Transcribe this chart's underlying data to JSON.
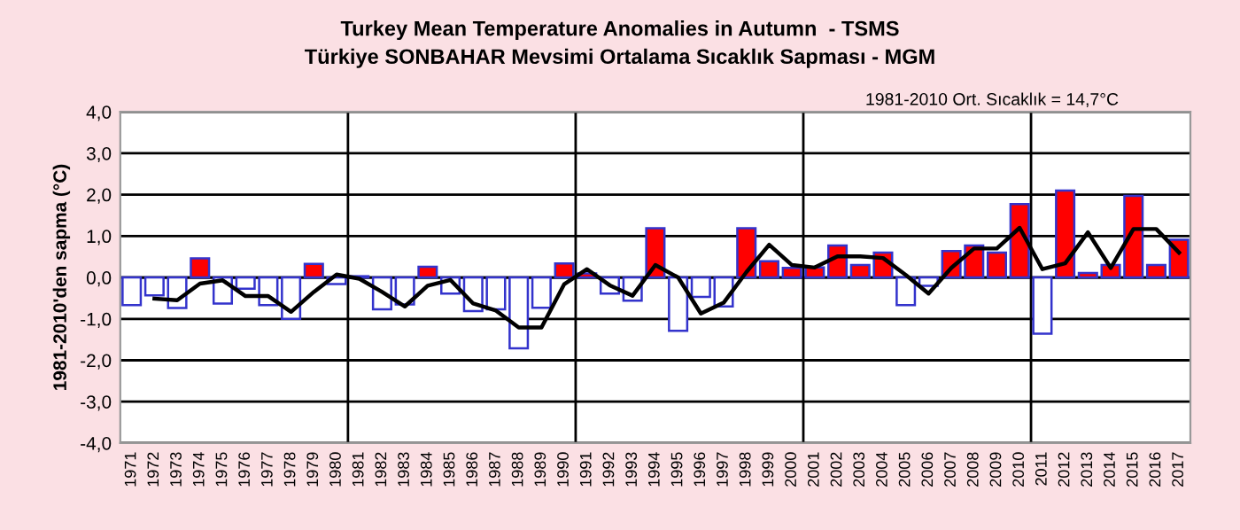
{
  "chart_data": {
    "type": "bar",
    "title": "Turkey Mean Temperature Anomalies in Autumn  - TSMS",
    "subtitle": "Türkiye SONBAHAR Mevsimi Ortalama Sıcaklık Sapması - MGM",
    "ylabel": "1981-2010'den sapma (°C)",
    "annotations": [
      "1981-2010 Ort. Sıcaklık = 14,7°C"
    ],
    "x": [
      1971,
      1972,
      1973,
      1974,
      1975,
      1976,
      1977,
      1978,
      1979,
      1980,
      1981,
      1982,
      1983,
      1984,
      1985,
      1986,
      1987,
      1988,
      1989,
      1990,
      1991,
      1992,
      1993,
      1994,
      1995,
      1996,
      1997,
      1998,
      1999,
      2000,
      2001,
      2002,
      2003,
      2004,
      2005,
      2006,
      2007,
      2008,
      2009,
      2010,
      2011,
      2012,
      2013,
      2014,
      2015,
      2016,
      2017
    ],
    "series": [
      {
        "values": [
          -0.67,
          -0.43,
          -0.74,
          0.46,
          -0.63,
          -0.27,
          -0.67,
          -1.0,
          0.33,
          -0.16,
          0.03,
          -0.77,
          -0.65,
          0.26,
          -0.39,
          -0.81,
          -0.77,
          -1.71,
          -0.73,
          0.34,
          0.1,
          -0.39,
          -0.56,
          1.19,
          -1.29,
          -0.47,
          -0.7,
          1.19,
          0.39,
          0.23,
          0.24,
          0.77,
          0.3,
          0.6,
          -0.67,
          -0.2,
          0.64,
          0.77,
          0.6,
          1.77,
          -1.36,
          2.1,
          0.11,
          0.3,
          1.97,
          0.3,
          0.91
        ],
        "colors": [
          "#ffffff",
          "#ffffff",
          "#ffffff",
          "#ff0000",
          "#ffffff",
          "#ffffff",
          "#ffffff",
          "#ffffff",
          "#ff0000",
          "#ffffff",
          "#ff0000",
          "#ffffff",
          "#ffffff",
          "#ff0000",
          "#ffffff",
          "#ffffff",
          "#ffffff",
          "#ffffff",
          "#ffffff",
          "#ff0000",
          "#ff0000",
          "#ffffff",
          "#ffffff",
          "#ff0000",
          "#ffffff",
          "#ffffff",
          "#ffffff",
          "#ff0000",
          "#ff0000",
          "#ff0000",
          "#ff0000",
          "#ff0000",
          "#ff0000",
          "#ff0000",
          "#ffffff",
          "#ffffff",
          "#ff0000",
          "#ff0000",
          "#ff0000",
          "#ff0000",
          "#ffffff",
          "#ff0000",
          "#ff0000",
          "#ff0000",
          "#ff0000",
          "#ff0000",
          "#ff0000"
        ]
      },
      {
        "type": "line",
        "color": "#000000",
        "x": [
          1972,
          1973,
          1974,
          1975,
          1976,
          1977,
          1978,
          1979,
          1980,
          1981,
          1982,
          1983,
          1984,
          1985,
          1986,
          1987,
          1988,
          1989,
          1990,
          1991,
          1992,
          1993,
          1994,
          1995,
          1996,
          1997,
          1998,
          1999,
          2000,
          2001,
          2002,
          2003,
          2004,
          2005,
          2006,
          2007,
          2008,
          2009,
          2010,
          2011,
          2012,
          2013,
          2014,
          2015,
          2016,
          2017
        ],
        "values": [
          -0.51,
          -0.55,
          -0.15,
          -0.07,
          -0.45,
          -0.45,
          -0.83,
          -0.35,
          0.07,
          -0.03,
          -0.35,
          -0.7,
          -0.2,
          -0.06,
          -0.63,
          -0.8,
          -1.21,
          -1.21,
          -0.16,
          0.2,
          -0.19,
          -0.44,
          0.3,
          0.0,
          -0.87,
          -0.61,
          0.13,
          0.79,
          0.3,
          0.24,
          0.51,
          0.51,
          0.47,
          0.06,
          -0.39,
          0.23,
          0.7,
          0.7,
          1.2,
          0.2,
          0.34,
          1.09,
          0.23,
          1.17,
          1.17,
          0.6
        ]
      }
    ],
    "xlim": [
      1970.5,
      2017.5
    ],
    "xticks": [
      1971,
      1972,
      1973,
      1974,
      1975,
      1976,
      1977,
      1978,
      1979,
      1980,
      1981,
      1982,
      1983,
      1984,
      1985,
      1986,
      1987,
      1988,
      1989,
      1990,
      1991,
      1992,
      1993,
      1994,
      1995,
      1996,
      1997,
      1998,
      1999,
      2000,
      2001,
      2002,
      2003,
      2004,
      2005,
      2006,
      2007,
      2008,
      2009,
      2010,
      2011,
      2012,
      2013,
      2014,
      2015,
      2016,
      2017
    ],
    "ylim": [
      -4,
      4
    ],
    "yticks": [
      {
        "value": -4,
        "label": "-4,0"
      },
      {
        "value": -3,
        "label": "-3,0"
      },
      {
        "value": -2,
        "label": "-2,0"
      },
      {
        "value": -1,
        "label": "-1,0"
      },
      {
        "value": 0,
        "label": "0,0"
      },
      {
        "value": 1,
        "label": "1,0"
      },
      {
        "value": 2,
        "label": "2,0"
      },
      {
        "value": 3,
        "label": "3,0"
      },
      {
        "value": 4,
        "label": "4,0"
      }
    ],
    "ref_lines": [
      {
        "axis": "x",
        "value": 1980.5,
        "color": "#000000"
      },
      {
        "axis": "x",
        "value": 1990.5,
        "color": "#000000"
      },
      {
        "axis": "x",
        "value": 2000.5,
        "color": "#000000"
      },
      {
        "axis": "x",
        "value": 2010.5,
        "color": "#000000"
      }
    ],
    "grid": "y",
    "legend": false,
    "marker": "none",
    "line_style": "solid"
  }
}
